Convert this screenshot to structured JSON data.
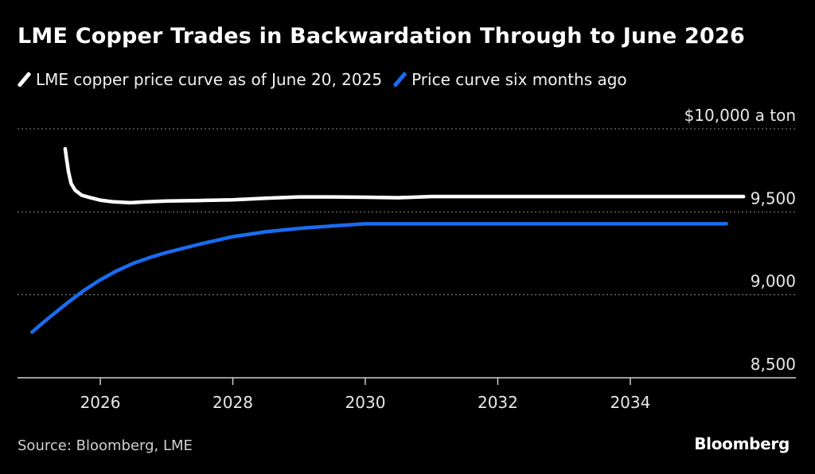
{
  "header": {
    "title": "LME Copper Trades in Backwardation Through to June 2026"
  },
  "source": "Source: Bloomberg, LME",
  "brand": "Bloomberg",
  "chart_data": {
    "type": "line",
    "title": "LME Copper Trades in Backwardation Through to June 2026",
    "xlabel": "",
    "ylabel": "",
    "xlim": [
      2024.75,
      2036.5
    ],
    "ylim": [
      8500,
      10000
    ],
    "y_ticks": [
      8500,
      9000,
      9500,
      10000
    ],
    "y_tick_labels": [
      "8,500",
      "9,000",
      "9,500",
      "$10,000 a ton"
    ],
    "x_ticks": [
      2026,
      2028,
      2030,
      2032,
      2034
    ],
    "x_tick_labels": [
      "2026",
      "2028",
      "2030",
      "2032",
      "2034"
    ],
    "grid": "horizontal dotted",
    "legend_position": "top-left",
    "series": [
      {
        "name": "LME copper price curve as of June 20, 2025",
        "color": "#ffffff",
        "x": [
          2025.47,
          2025.49,
          2025.52,
          2025.56,
          2025.62,
          2025.72,
          2025.85,
          2026.0,
          2026.2,
          2026.45,
          2026.7,
          2027.0,
          2027.5,
          2028.0,
          2028.5,
          2029.0,
          2029.5,
          2030.0,
          2030.5,
          2031.0,
          2031.5,
          2032.0,
          2032.5,
          2033.0,
          2033.5,
          2034.0,
          2034.5,
          2035.0,
          2035.5,
          2035.71
        ],
        "values": [
          9880,
          9820,
          9740,
          9670,
          9630,
          9600,
          9585,
          9570,
          9560,
          9555,
          9560,
          9565,
          9568,
          9572,
          9582,
          9590,
          9590,
          9588,
          9585,
          9592,
          9592,
          9592,
          9592,
          9592,
          9592,
          9592,
          9592,
          9592,
          9592,
          9592
        ]
      },
      {
        "name": "Price curve six months ago",
        "color": "#1a6cf0",
        "x": [
          2024.97,
          2025.1,
          2025.25,
          2025.5,
          2025.75,
          2026.0,
          2026.25,
          2026.5,
          2026.75,
          2027.0,
          2027.5,
          2028.0,
          2028.5,
          2029.0,
          2029.5,
          2030.0,
          2030.5,
          2031.0,
          2031.5,
          2032.0,
          2032.5,
          2033.0,
          2033.5,
          2034.0,
          2034.5,
          2035.0,
          2035.45
        ],
        "values": [
          8775,
          8820,
          8870,
          8950,
          9025,
          9090,
          9145,
          9190,
          9225,
          9255,
          9305,
          9350,
          9380,
          9400,
          9415,
          9428,
          9428,
          9428,
          9428,
          9428,
          9428,
          9428,
          9428,
          9428,
          9428,
          9428,
          9428
        ]
      }
    ]
  }
}
